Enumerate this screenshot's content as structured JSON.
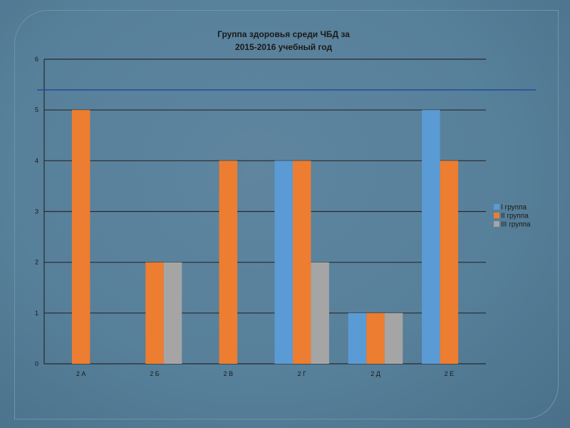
{
  "chart_data": {
    "type": "bar",
    "title": [
      "Группа здоровья среди ЧБД за",
      "2015-2016 учебный год"
    ],
    "categories": [
      "2 А",
      "2 Б",
      "2 В",
      "2 Г",
      "2 Д",
      "2 Е"
    ],
    "series": [
      {
        "name": "I группа",
        "values": [
          0,
          0,
          0,
          4,
          1,
          5
        ],
        "color": "#5b9bd5"
      },
      {
        "name": "II группа",
        "values": [
          5,
          2,
          4,
          4,
          1,
          4
        ],
        "color": "#ed7d31"
      },
      {
        "name": "III группа",
        "values": [
          0,
          2,
          0,
          2,
          1,
          0
        ],
        "color": "#a5a5a5"
      }
    ],
    "ylim": [
      0,
      6
    ],
    "yticks": [
      0,
      1,
      2,
      3,
      4,
      5,
      6
    ],
    "grid": true,
    "legend_position": "right"
  },
  "colors": {
    "background": "#57809a",
    "gridline": "#2a2a2a",
    "accent_line": "#1f4e99"
  }
}
